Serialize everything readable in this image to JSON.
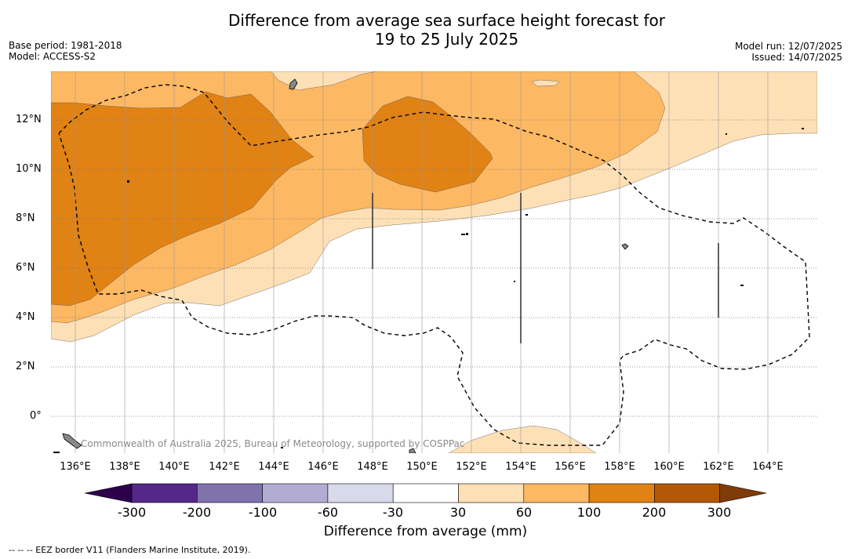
{
  "title": {
    "line1": "Difference from average sea surface height forecast for",
    "line2": "19 to 25 July 2025"
  },
  "meta_left": {
    "base_period": "Base period: 1981-2018",
    "model": "Model: ACCESS-S2"
  },
  "meta_right": {
    "model_run": "Model run: 12/07/2025",
    "issued": "Issued: 14/07/2025"
  },
  "axes": {
    "lat_labels": [
      "12°N",
      "10°N",
      "8°N",
      "6°N",
      "4°N",
      "2°N",
      "0°"
    ],
    "lon_labels": [
      "136°E",
      "138°E",
      "140°E",
      "142°E",
      "144°E",
      "146°E",
      "148°E",
      "150°E",
      "152°E",
      "154°E",
      "156°E",
      "158°E",
      "160°E",
      "162°E",
      "164°E"
    ]
  },
  "credit": "Commonwealth of Australia 2025, Bureau of Meteorology, supported by COSPPac",
  "colorbar": {
    "title": "Difference from average (mm)",
    "tick_labels": [
      "-300",
      "-200",
      "-100",
      "-60",
      "-30",
      "30",
      "60",
      "100",
      "200",
      "300"
    ],
    "colors": {
      "below_-300": "#2d004b",
      "-300_-200": "#542788",
      "-200_-100": "#8073ac",
      "-100_-60": "#b2abd2",
      "-60_-30": "#d8daeb",
      "-30_30": "#ffffff",
      "30_60": "#fee0b6",
      "60_100": "#fdb863",
      "100_200": "#e08214",
      "200_300": "#b35806",
      "above_300": "#7f3b08"
    }
  },
  "footer": "--  --  -- EEZ border V11 (Flanders Marine Institute, 2019)."
}
